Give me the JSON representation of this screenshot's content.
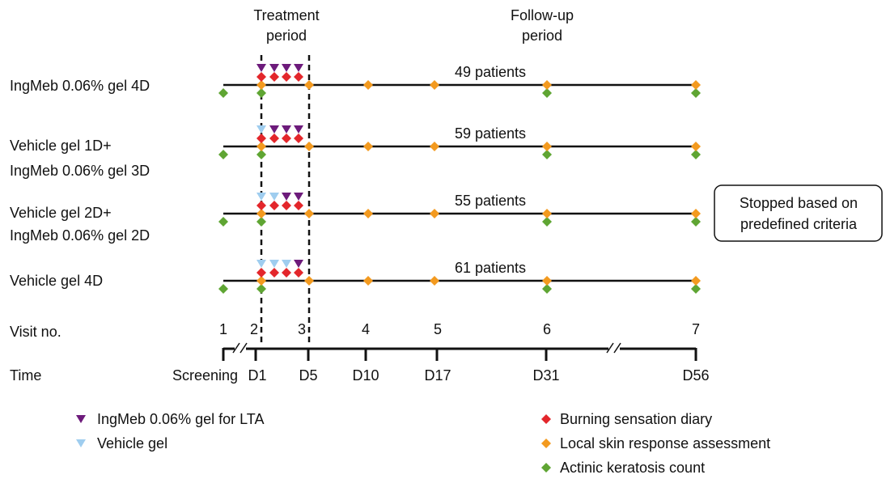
{
  "headers": {
    "treatment": [
      "Treatment",
      "period"
    ],
    "follow_up": [
      "Follow-up",
      "period"
    ]
  },
  "arms": [
    {
      "label": [
        "IngMeb 0.06% gel 4D"
      ],
      "patients": "49 patients"
    },
    {
      "label": [
        "Vehicle gel 1D+",
        "IngMeb 0.06% gel 3D"
      ],
      "patients": "59 patients"
    },
    {
      "label": [
        "Vehicle gel 2D+",
        "IngMeb 0.06% gel 2D"
      ],
      "patients": "55 patients"
    },
    {
      "label": [
        "Vehicle gel 4D"
      ],
      "patients": "61 patients"
    }
  ],
  "note": [
    "Stopped based on",
    "predefined criteria"
  ],
  "visits": {
    "label": "Visit no.",
    "items": [
      "1",
      "2",
      "3",
      "4",
      "5",
      "6",
      "7"
    ]
  },
  "time": {
    "label": "Time",
    "items": [
      "Screening",
      "D1",
      "D5",
      "D10",
      "D17",
      "D31",
      "D56"
    ]
  },
  "legend": {
    "left": [
      "IngMeb 0.06% gel for LTA",
      "Vehicle gel"
    ],
    "right": [
      "Burning sensation diary",
      "Local skin response assessment",
      "Actinic keratosis count"
    ]
  }
}
